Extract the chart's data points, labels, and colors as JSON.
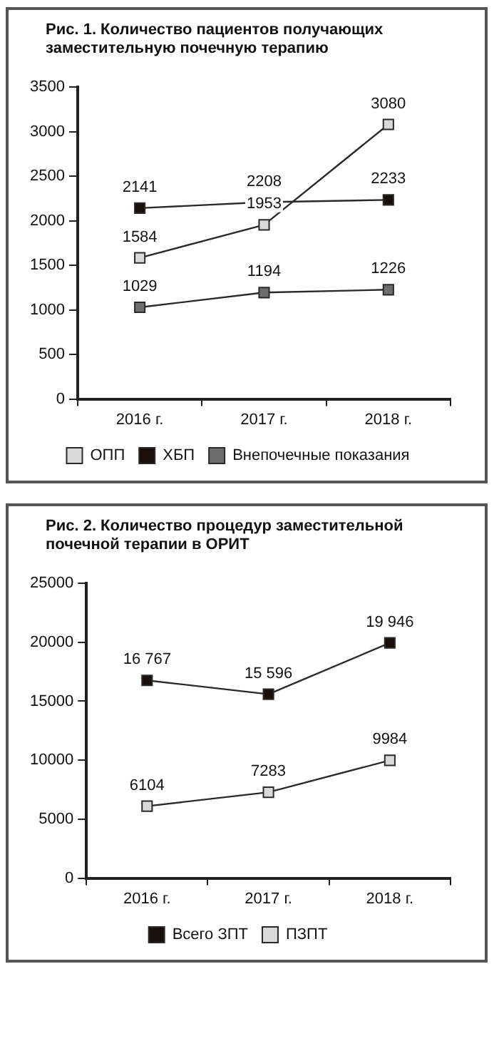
{
  "chart_data": [
    {
      "type": "line",
      "title": "Рис. 1. Количество пациентов получающих заместительную почечную терапию",
      "categories": [
        "2016 г.",
        "2017 г.",
        "2018 г."
      ],
      "series": [
        {
          "name": "ОПП",
          "color": "#d9d9d9",
          "values": [
            1584,
            1953,
            3080
          ]
        },
        {
          "name": "ХБП",
          "color": "#1a0f0a",
          "values": [
            2141,
            2208,
            2233
          ]
        },
        {
          "name": "Внепочечные показания",
          "color": "#6e6e6e",
          "values": [
            1029,
            1194,
            1226
          ]
        }
      ],
      "ylim": [
        0,
        3500
      ],
      "yticks": [
        0,
        500,
        1000,
        1500,
        2000,
        2500,
        3000,
        3500
      ],
      "grid": false,
      "legend": "bottom",
      "marker": "square",
      "line_style": "solid",
      "data_labels": true
    },
    {
      "type": "line",
      "title": "Рис. 2. Количество процедур заместительной почечной терапии в ОРИТ",
      "categories": [
        "2016 г.",
        "2017 г.",
        "2018 г."
      ],
      "series": [
        {
          "name": "Всего ЗПТ",
          "color": "#1a0f0a",
          "values": [
            16767,
            15596,
            19946
          ],
          "value_labels": [
            "16 767",
            "15 596",
            "19 946"
          ]
        },
        {
          "name": "ПЗПТ",
          "color": "#d9d9d9",
          "values": [
            6104,
            7283,
            9984
          ],
          "value_labels": [
            "6104",
            "7283",
            "9984"
          ]
        }
      ],
      "ylim": [
        0,
        25000
      ],
      "yticks": [
        0,
        5000,
        10000,
        15000,
        20000,
        25000
      ],
      "grid": false,
      "legend": "bottom",
      "marker": "square",
      "line_style": "solid"
    }
  ]
}
